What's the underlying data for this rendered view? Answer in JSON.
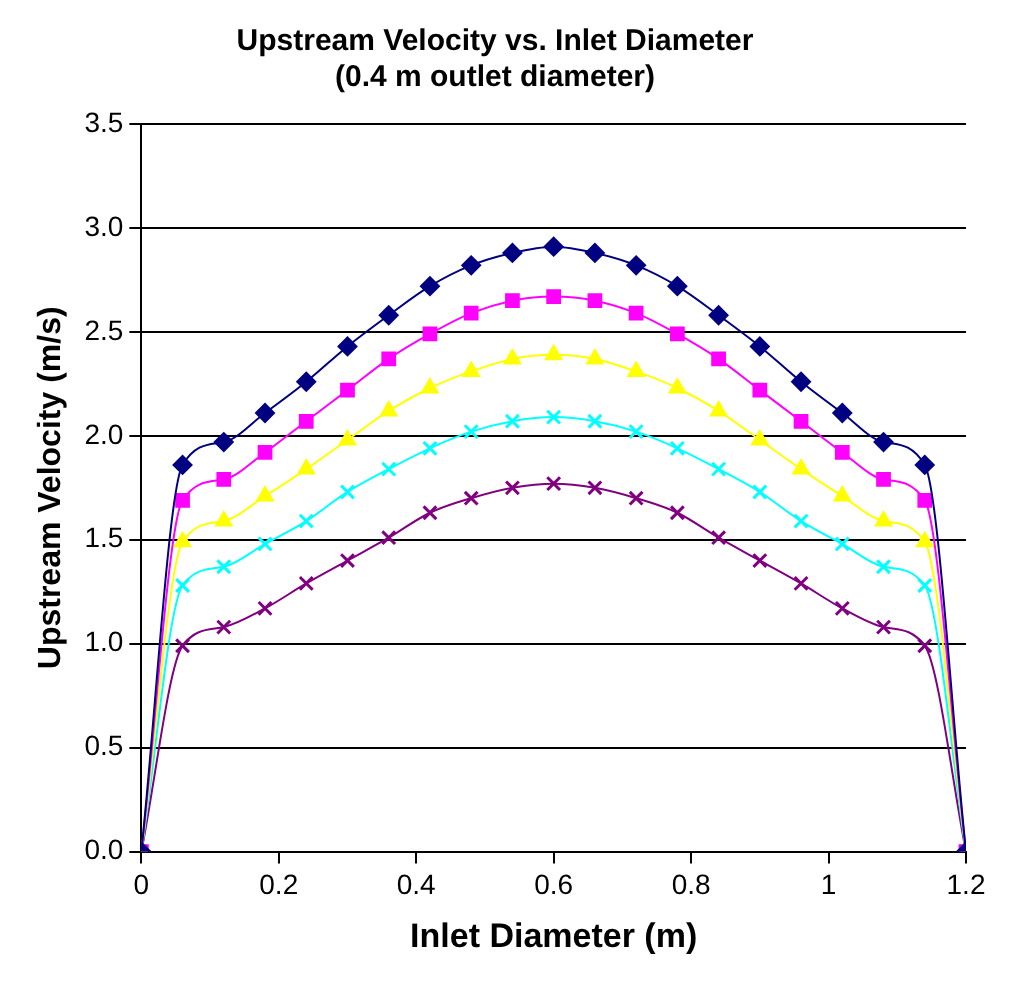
{
  "chart_data": {
    "type": "line",
    "title": [
      "Upstream Velocity vs. Inlet Diameter",
      "(0.4 m outlet diameter)"
    ],
    "xlabel": "Inlet Diameter (m)",
    "ylabel": "Upstream Velocity (m/s)",
    "x": [
      0,
      0.06,
      0.12,
      0.18,
      0.24,
      0.3,
      0.36,
      0.42,
      0.48,
      0.54,
      0.6,
      0.66,
      0.72,
      0.78,
      0.84,
      0.9,
      0.96,
      1.02,
      1.08,
      1.14,
      1.2
    ],
    "series": [
      {
        "color": "#000080",
        "marker": "diamond",
        "values": [
          0,
          1.86,
          1.97,
          2.11,
          2.26,
          2.43,
          2.58,
          2.72,
          2.82,
          2.88,
          2.91,
          2.88,
          2.82,
          2.72,
          2.58,
          2.43,
          2.26,
          2.11,
          1.97,
          1.86,
          0
        ]
      },
      {
        "color": "#ff00ff",
        "marker": "square",
        "values": [
          0,
          1.69,
          1.79,
          1.92,
          2.07,
          2.22,
          2.37,
          2.49,
          2.59,
          2.65,
          2.67,
          2.65,
          2.59,
          2.49,
          2.37,
          2.22,
          2.07,
          1.92,
          1.79,
          1.69,
          0
        ]
      },
      {
        "color": "#ffff00",
        "marker": "triangle",
        "values": [
          0,
          1.49,
          1.59,
          1.71,
          1.84,
          1.98,
          2.12,
          2.23,
          2.31,
          2.37,
          2.39,
          2.37,
          2.31,
          2.23,
          2.12,
          1.98,
          1.84,
          1.71,
          1.59,
          1.49,
          0
        ]
      },
      {
        "color": "#00ffff",
        "marker": "cross",
        "values": [
          0,
          1.28,
          1.37,
          1.48,
          1.59,
          1.73,
          1.84,
          1.94,
          2.02,
          2.07,
          2.09,
          2.07,
          2.02,
          1.94,
          1.84,
          1.73,
          1.59,
          1.48,
          1.37,
          1.28,
          0
        ]
      },
      {
        "color": "#800080",
        "marker": "cross",
        "values": [
          0,
          0.99,
          1.08,
          1.17,
          1.29,
          1.4,
          1.51,
          1.63,
          1.7,
          1.75,
          1.77,
          1.75,
          1.7,
          1.63,
          1.51,
          1.4,
          1.29,
          1.17,
          1.08,
          0.99,
          0
        ]
      }
    ],
    "xlim": [
      0,
      1.2
    ],
    "xticks": [
      0,
      0.2,
      0.4,
      0.6,
      0.8,
      1,
      1.2
    ],
    "ylim": [
      0,
      3.5
    ],
    "yticks": [
      {
        "value": 0,
        "label": "0.0"
      },
      {
        "value": 0.5,
        "label": "0.5"
      },
      {
        "value": 1,
        "label": "1.0"
      },
      {
        "value": 1.5,
        "label": "1.5"
      },
      {
        "value": 2,
        "label": "2.0"
      },
      {
        "value": 2.5,
        "label": "2.5"
      },
      {
        "value": 3,
        "label": "3.0"
      },
      {
        "value": 3.5,
        "label": "3.5"
      }
    ],
    "grid": "y",
    "legend": false
  }
}
